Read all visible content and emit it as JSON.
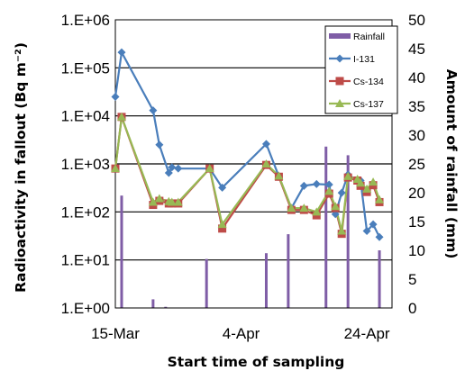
{
  "chart_data": {
    "type": "line",
    "xlabel": "Start time of sampling",
    "ylabel_left": "Radioactivity in fallout (Bq m⁻²)",
    "ylabel_right": "Amount of rainfall (mm)",
    "x_ticks": [
      "15-Mar",
      "4-Apr",
      "24-Apr"
    ],
    "x_range": [
      0,
      44
    ],
    "y_left_scale": "log",
    "y_left_range": [
      1,
      1000000
    ],
    "y_left_ticks": [
      "1.E+00",
      "1.E+01",
      "1.E+02",
      "1.E+03",
      "1.E+04",
      "1.E+05",
      "1.E+06"
    ],
    "y_right_range": [
      0,
      50
    ],
    "y_right_ticks": [
      "0",
      "5",
      "10",
      "15",
      "20",
      "25",
      "30",
      "35",
      "40",
      "45",
      "50"
    ],
    "grid": "horizontal",
    "legend_position": "top-right",
    "series": [
      {
        "name": "I-131",
        "axis": "left",
        "color": "#4a7ebb",
        "marker": "diamond",
        "x": [
          0,
          1,
          6,
          7,
          8.5,
          9,
          10,
          15,
          17,
          24,
          26,
          28,
          30,
          32,
          34,
          35,
          36,
          37,
          38.5,
          39,
          40,
          41,
          42
        ],
        "y": [
          25000,
          210000,
          13000,
          2500,
          650,
          850,
          800,
          800,
          320,
          2600,
          550,
          120,
          350,
          380,
          370,
          90,
          250,
          600,
          450,
          450,
          40,
          55,
          30
        ]
      },
      {
        "name": "Cs-134",
        "axis": "left",
        "color": "#be4b48",
        "marker": "square",
        "x": [
          0,
          1,
          6,
          7,
          8.5,
          9,
          10,
          15,
          17,
          24,
          26,
          28,
          30,
          32,
          34,
          35,
          36,
          37,
          38.5,
          39,
          40,
          41,
          42
        ],
        "y": [
          800,
          9500,
          140,
          170,
          150,
          150,
          150,
          800,
          45,
          950,
          540,
          110,
          110,
          85,
          240,
          120,
          35,
          520,
          450,
          350,
          260,
          360,
          160
        ]
      },
      {
        "name": "Cs-137",
        "axis": "left",
        "color": "#98b954",
        "marker": "triangle",
        "x": [
          0,
          1,
          6,
          7,
          8.5,
          9,
          10,
          15,
          17,
          24,
          26,
          28,
          30,
          32,
          34,
          35,
          36,
          37,
          38.5,
          39,
          40,
          41,
          42
        ],
        "y": [
          800,
          9500,
          160,
          190,
          165,
          160,
          160,
          800,
          55,
          1000,
          560,
          120,
          120,
          100,
          270,
          130,
          40,
          550,
          480,
          400,
          300,
          420,
          180
        ]
      },
      {
        "name": "Rainfall",
        "axis": "right",
        "type": "bar",
        "color": "#7f5da6",
        "x": [
          1,
          6,
          8,
          14.5,
          24,
          27.5,
          33.5,
          37,
          42
        ],
        "values": [
          19.5,
          1.5,
          0.2,
          8.5,
          9.5,
          12.8,
          28,
          26.5,
          10
        ]
      }
    ]
  }
}
